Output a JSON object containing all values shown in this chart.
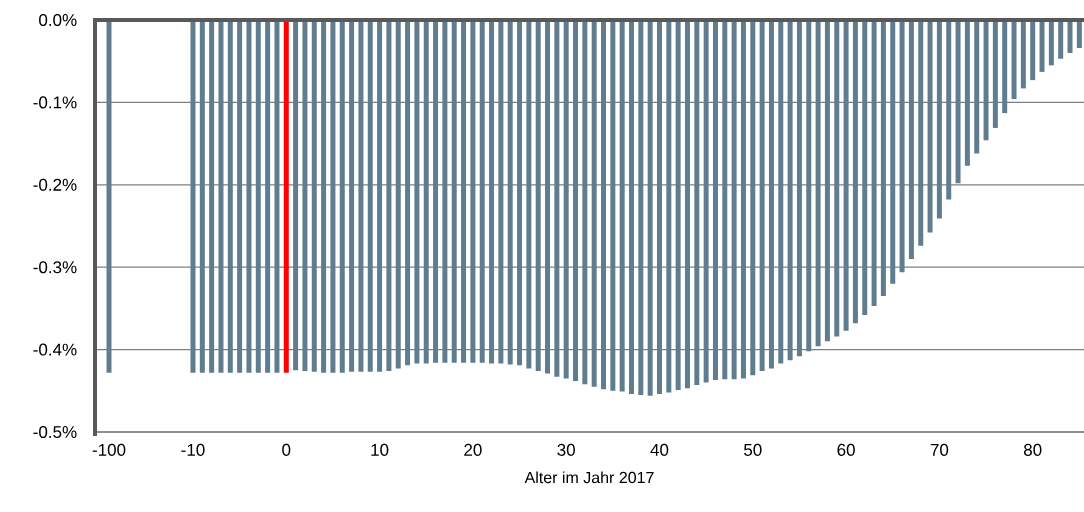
{
  "chart_data": {
    "type": "bar",
    "xlabel": "Alter im Jahr 2017",
    "categories": [
      "-100",
      null,
      null,
      null,
      null,
      null,
      null,
      null,
      null,
      "-10",
      null,
      null,
      null,
      null,
      null,
      null,
      null,
      null,
      null,
      "0",
      null,
      null,
      null,
      null,
      null,
      null,
      null,
      null,
      null,
      "10",
      null,
      null,
      null,
      null,
      null,
      null,
      null,
      null,
      null,
      "20",
      null,
      null,
      null,
      null,
      null,
      null,
      null,
      null,
      null,
      "30",
      null,
      null,
      null,
      null,
      null,
      null,
      null,
      null,
      null,
      "40",
      null,
      null,
      null,
      null,
      null,
      null,
      null,
      null,
      null,
      "50",
      null,
      null,
      null,
      null,
      null,
      null,
      null,
      null,
      null,
      "60",
      null,
      null,
      null,
      null,
      null,
      null,
      null,
      null,
      null,
      "70",
      null,
      null,
      null,
      null,
      null,
      null,
      null,
      null,
      null,
      "80",
      null,
      null,
      null,
      null,
      null
    ],
    "values": [
      -0.428,
      null,
      null,
      null,
      null,
      null,
      null,
      null,
      null,
      -0.428,
      -0.428,
      -0.428,
      -0.428,
      -0.428,
      -0.428,
      -0.428,
      -0.428,
      -0.428,
      -0.428,
      -0.428,
      -0.425,
      -0.426,
      -0.427,
      -0.428,
      -0.428,
      -0.428,
      -0.427,
      -0.427,
      -0.427,
      -0.427,
      -0.426,
      -0.423,
      -0.419,
      -0.417,
      -0.417,
      -0.416,
      -0.416,
      -0.416,
      -0.416,
      -0.416,
      -0.416,
      -0.417,
      -0.417,
      -0.418,
      -0.419,
      -0.423,
      -0.426,
      -0.429,
      -0.433,
      -0.435,
      -0.438,
      -0.442,
      -0.445,
      -0.448,
      -0.45,
      -0.451,
      -0.454,
      -0.455,
      -0.456,
      -0.454,
      -0.452,
      -0.449,
      -0.447,
      -0.443,
      -0.44,
      -0.437,
      -0.436,
      -0.436,
      -0.435,
      -0.431,
      -0.426,
      -0.423,
      -0.417,
      -0.413,
      -0.408,
      -0.402,
      -0.396,
      -0.39,
      -0.384,
      -0.377,
      -0.368,
      -0.358,
      -0.347,
      -0.335,
      -0.32,
      -0.306,
      -0.29,
      -0.274,
      -0.258,
      -0.241,
      -0.218,
      -0.198,
      -0.177,
      -0.162,
      -0.146,
      -0.131,
      -0.113,
      -0.096,
      -0.083,
      -0.073,
      -0.063,
      -0.055,
      -0.047,
      -0.04,
      -0.034
    ],
    "colors": [
      "#5f7d8e",
      "#5f7d8e",
      "#5f7d8e",
      "#5f7d8e",
      "#5f7d8e",
      "#5f7d8e",
      "#5f7d8e",
      "#5f7d8e",
      "#5f7d8e",
      "#5f7d8e",
      "#5f7d8e",
      "#5f7d8e",
      "#5f7d8e",
      "#5f7d8e",
      "#5f7d8e",
      "#5f7d8e",
      "#5f7d8e",
      "#5f7d8e",
      "#5f7d8e",
      "#ff0000",
      "#5f7d8e",
      "#5f7d8e",
      "#5f7d8e",
      "#5f7d8e",
      "#5f7d8e",
      "#5f7d8e",
      "#5f7d8e",
      "#5f7d8e",
      "#5f7d8e",
      "#5f7d8e",
      "#5f7d8e",
      "#5f7d8e",
      "#5f7d8e",
      "#5f7d8e",
      "#5f7d8e",
      "#5f7d8e",
      "#5f7d8e",
      "#5f7d8e",
      "#5f7d8e",
      "#5f7d8e",
      "#5f7d8e",
      "#5f7d8e",
      "#5f7d8e",
      "#5f7d8e",
      "#5f7d8e",
      "#5f7d8e",
      "#5f7d8e",
      "#5f7d8e",
      "#5f7d8e",
      "#5f7d8e",
      "#5f7d8e",
      "#5f7d8e",
      "#5f7d8e",
      "#5f7d8e",
      "#5f7d8e",
      "#5f7d8e",
      "#5f7d8e",
      "#5f7d8e",
      "#5f7d8e",
      "#5f7d8e",
      "#5f7d8e",
      "#5f7d8e",
      "#5f7d8e",
      "#5f7d8e",
      "#5f7d8e",
      "#5f7d8e",
      "#5f7d8e",
      "#5f7d8e",
      "#5f7d8e",
      "#5f7d8e",
      "#5f7d8e",
      "#5f7d8e",
      "#5f7d8e",
      "#5f7d8e",
      "#5f7d8e",
      "#5f7d8e",
      "#5f7d8e",
      "#5f7d8e",
      "#5f7d8e",
      "#5f7d8e",
      "#5f7d8e",
      "#5f7d8e",
      "#5f7d8e",
      "#5f7d8e",
      "#5f7d8e",
      "#5f7d8e",
      "#5f7d8e",
      "#5f7d8e",
      "#5f7d8e",
      "#5f7d8e",
      "#5f7d8e",
      "#5f7d8e",
      "#5f7d8e",
      "#5f7d8e",
      "#5f7d8e",
      "#5f7d8e",
      "#5f7d8e",
      "#5f7d8e",
      "#5f7d8e",
      "#5f7d8e",
      "#5f7d8e",
      "#5f7d8e",
      "#5f7d8e",
      "#5f7d8e",
      "#5f7d8e"
    ],
    "ylim": [
      -0.5,
      0
    ],
    "yticks": [
      {
        "value": -0.5,
        "label": "-0.5%"
      },
      {
        "value": -0.4,
        "label": "-0.4%"
      },
      {
        "value": -0.3,
        "label": "-0.3%"
      },
      {
        "value": -0.2,
        "label": "-0.2%"
      },
      {
        "value": -0.1,
        "label": "-0.1%"
      },
      {
        "value": 0,
        "label": "0.0%"
      }
    ],
    "grid": "y"
  }
}
